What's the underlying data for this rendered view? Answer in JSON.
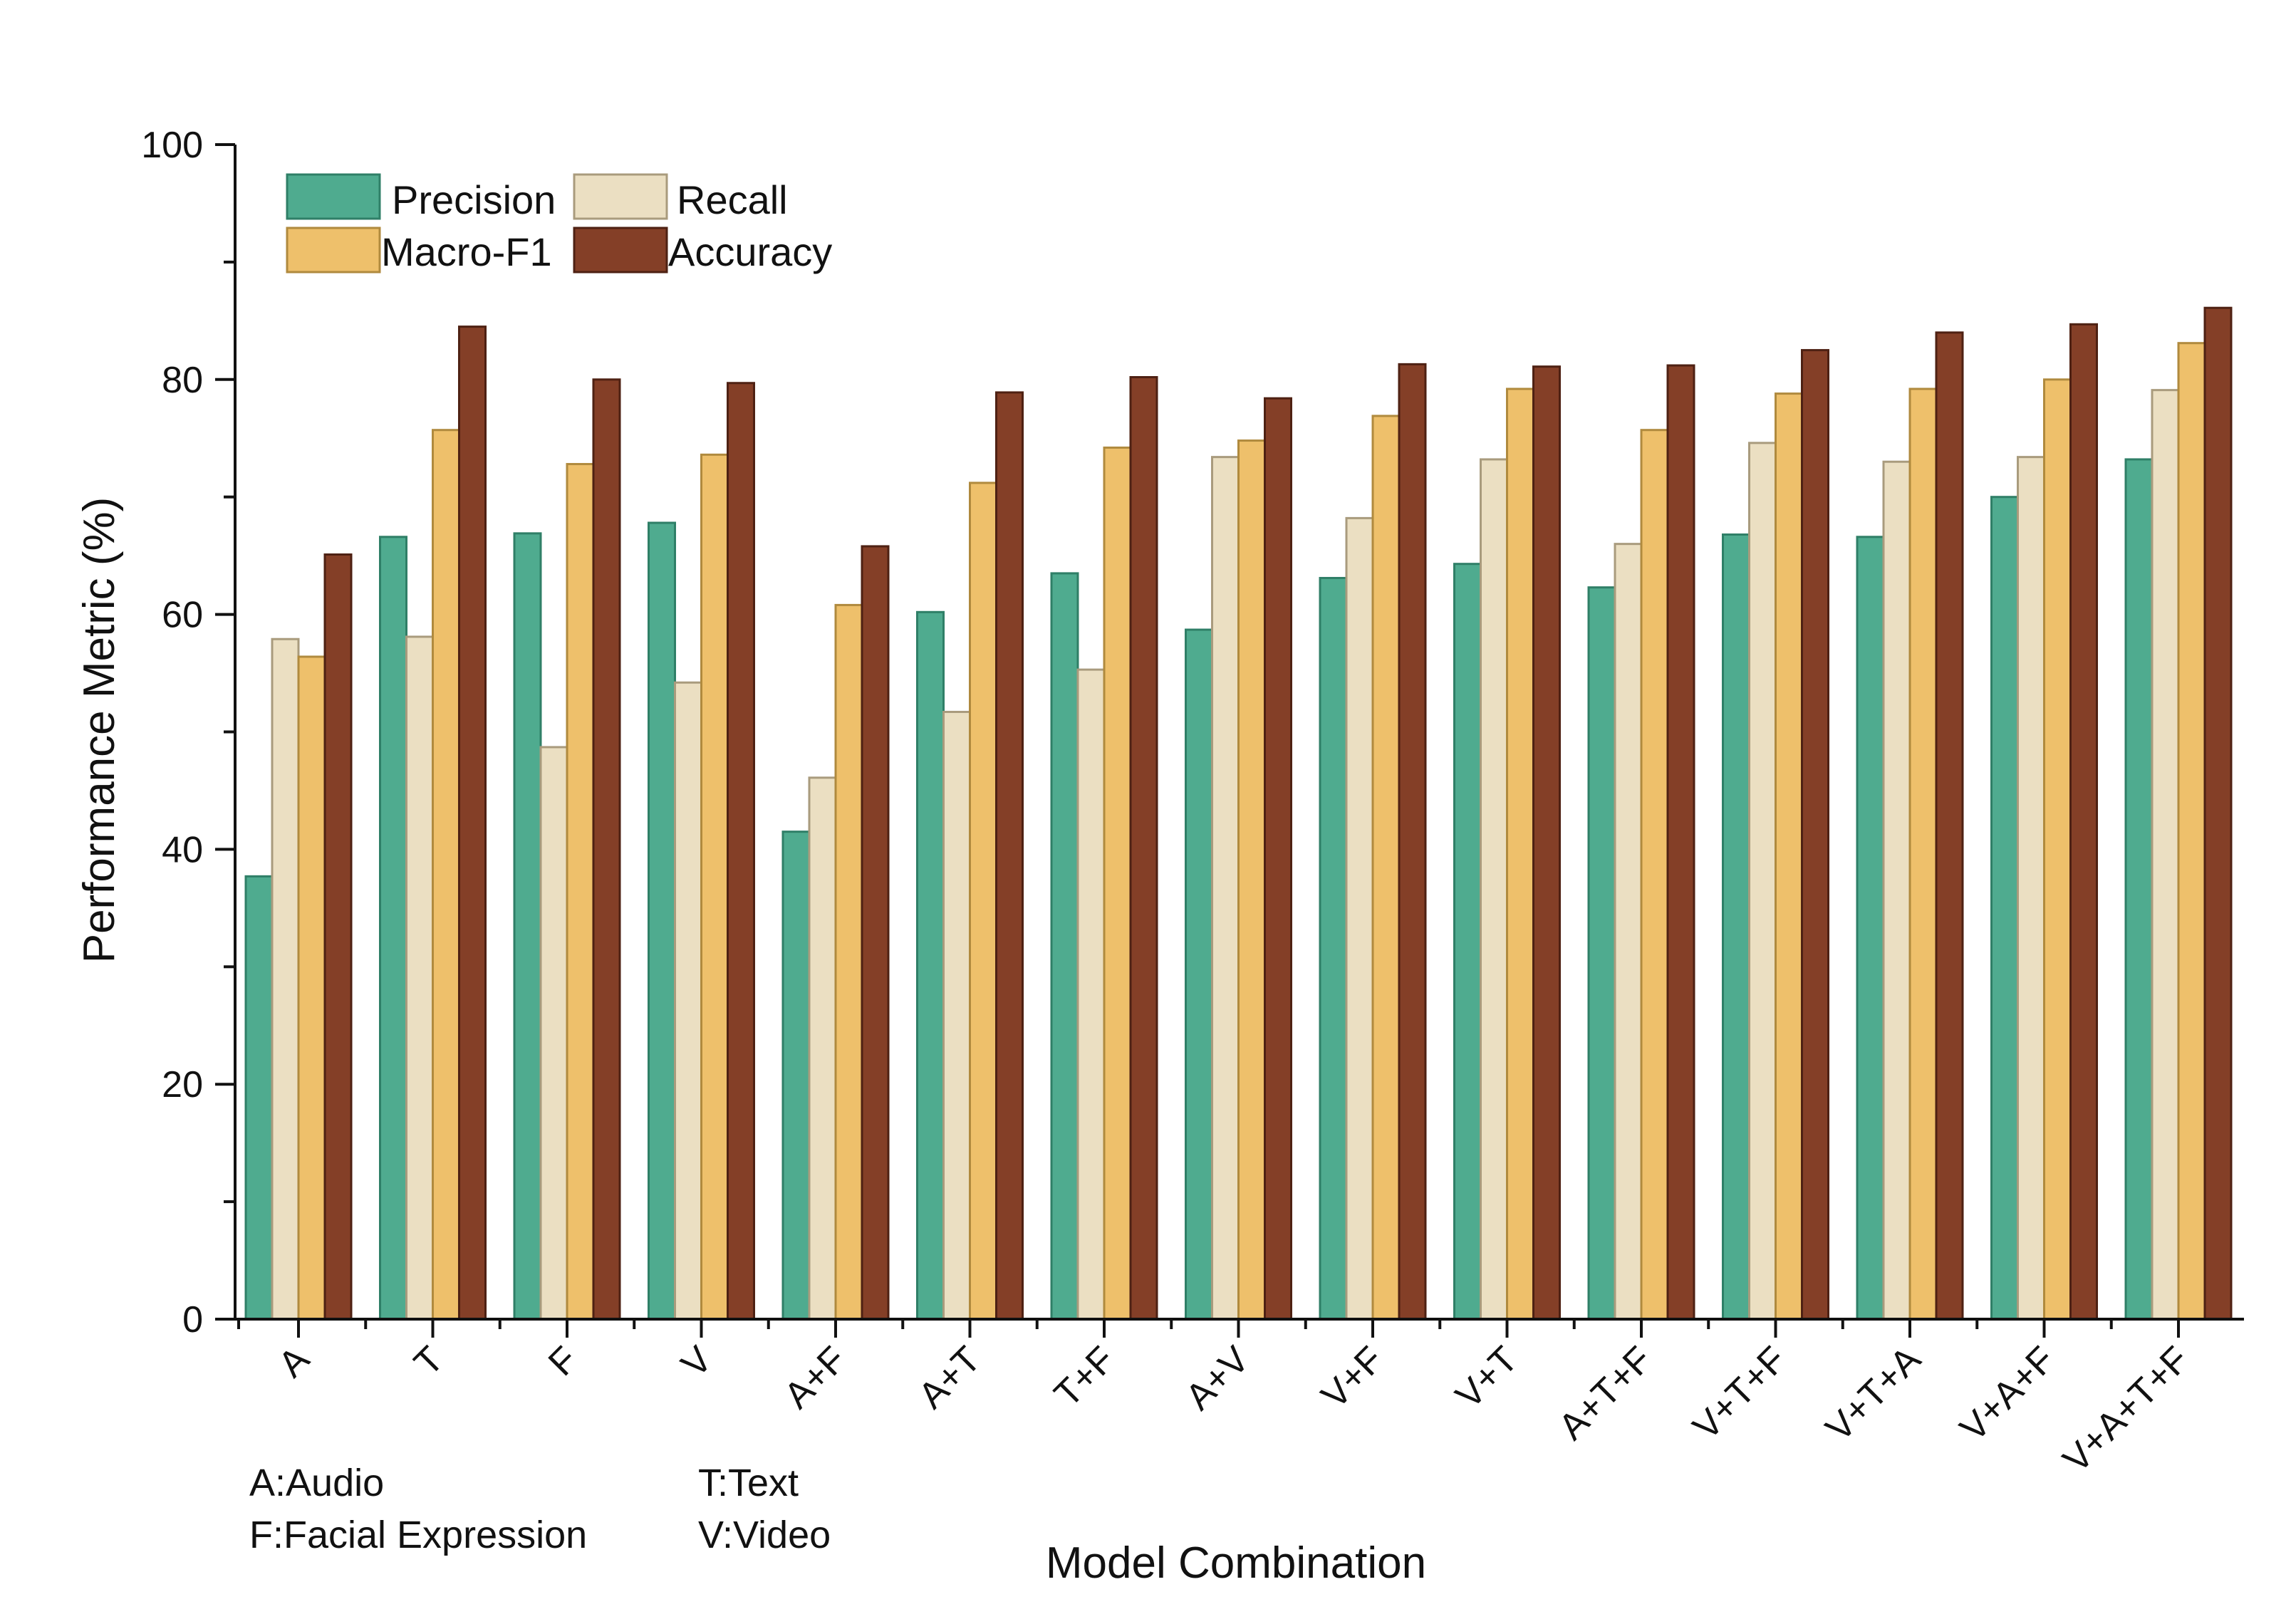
{
  "chart_data": {
    "type": "bar",
    "title": "",
    "xlabel": "Model Combination",
    "ylabel": "Performance Metric (%)",
    "ylim": [
      0,
      100
    ],
    "yticks": [
      0,
      20,
      40,
      60,
      80,
      100
    ],
    "grid": false,
    "legend_position": "top-left",
    "categories": [
      "A",
      "T",
      "F",
      "V",
      "A+F",
      "A+T",
      "T+F",
      "A+V",
      "V+F",
      "V+T",
      "A+T+F",
      "V+T+F",
      "V+T+A",
      "V+A+F",
      "V+A+T+F"
    ],
    "series": [
      {
        "name": "Precision",
        "color": "#4fab8f",
        "edge": "#2f7f67",
        "values": [
          37.7,
          66.6,
          66.9,
          67.8,
          41.5,
          60.2,
          63.5,
          58.7,
          63.1,
          64.3,
          62.3,
          66.8,
          66.6,
          70.0,
          73.2
        ]
      },
      {
        "name": "Recall",
        "color": "#ebdfc2",
        "edge": "#a99b7d",
        "values": [
          57.9,
          58.1,
          48.7,
          54.2,
          46.1,
          51.7,
          55.3,
          73.4,
          68.2,
          73.2,
          66.0,
          74.6,
          73.0,
          73.4,
          79.1
        ]
      },
      {
        "name": "Macro-F1",
        "color": "#eec06b",
        "edge": "#b08a3e",
        "values": [
          56.4,
          75.7,
          72.8,
          73.6,
          60.8,
          71.2,
          74.2,
          74.8,
          76.9,
          79.2,
          75.7,
          78.8,
          79.2,
          80.0,
          83.1
        ]
      },
      {
        "name": "Accuracy",
        "color": "#843f27",
        "edge": "#4e2113",
        "values": [
          65.1,
          84.5,
          80.0,
          79.7,
          65.8,
          78.9,
          80.2,
          78.4,
          81.3,
          81.1,
          81.2,
          82.5,
          84.0,
          84.7,
          86.1
        ]
      }
    ],
    "notes": [
      "A:Audio",
      "T:Text",
      "F:Facial Expression",
      "V:Video"
    ]
  }
}
